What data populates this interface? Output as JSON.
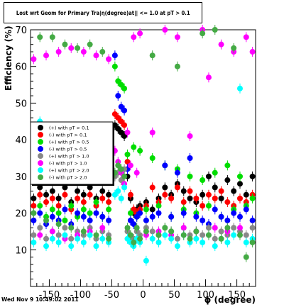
{
  "page": {
    "title": "Lost wrt Geom for Primary Tra|η(degree)at|| <= 1.0 at pT > 0.1",
    "datestamp": "Wed Nov  9 10:49:02 2011"
  },
  "chart_data": {
    "type": "scatter",
    "title": "Lost wrt Geom for Primary Tra|η(degree)at|| <= 1.0 at pT > 0.1",
    "xlabel": "ϕ (degree)",
    "ylabel": "Efficiency (%)",
    "xlim": [
      -180,
      180
    ],
    "ylim": [
      0,
      70
    ],
    "xticks": [
      -150,
      -100,
      -50,
      0,
      50,
      100,
      150
    ],
    "yticks": [
      10,
      20,
      30,
      40,
      50,
      60,
      70
    ],
    "grid": false,
    "legend_position": "center-left",
    "series": [
      {
        "name": "(+) with pT > 0.1",
        "color": "#000000",
        "x": [
          -175,
          -165,
          -155,
          -145,
          -135,
          -125,
          -115,
          -105,
          -95,
          -85,
          -75,
          -65,
          -55,
          -45,
          -40,
          -35,
          -30,
          -25,
          -20,
          -15,
          -10,
          -5,
          5,
          15,
          25,
          35,
          45,
          55,
          65,
          75,
          85,
          95,
          105,
          115,
          125,
          135,
          145,
          155,
          165,
          175
        ],
        "y": [
          24,
          27,
          25,
          26,
          24,
          27,
          23,
          26,
          25,
          27,
          24,
          26,
          25,
          44,
          43,
          42,
          41,
          30,
          24,
          20,
          21,
          22,
          23,
          21,
          24,
          27,
          25,
          28,
          26,
          24,
          23,
          25,
          30,
          27,
          24,
          29,
          26,
          28,
          25,
          30
        ]
      },
      {
        "name": "(-) with pT > 0.1",
        "color": "#ff0000",
        "x": [
          -175,
          -165,
          -155,
          -145,
          -135,
          -125,
          -115,
          -105,
          -95,
          -85,
          -75,
          -65,
          -55,
          -45,
          -40,
          -35,
          -30,
          -25,
          -20,
          -15,
          -10,
          -5,
          5,
          15,
          25,
          35,
          45,
          55,
          65,
          75,
          85,
          95,
          105,
          115,
          125,
          135,
          145,
          155,
          165,
          175
        ],
        "y": [
          22,
          25,
          23,
          24,
          22,
          25,
          21,
          24,
          23,
          25,
          22,
          24,
          23,
          47,
          46,
          45,
          44,
          34,
          25,
          21,
          20,
          21,
          22,
          27,
          23,
          25,
          24,
          27,
          23,
          26,
          24,
          22,
          25,
          24,
          26,
          23,
          22,
          24,
          23,
          25
        ]
      },
      {
        "name": "(+) with pT > 0.5",
        "color": "#00dd00",
        "x": [
          -175,
          -165,
          -155,
          -145,
          -135,
          -125,
          -115,
          -105,
          -95,
          -85,
          -75,
          -65,
          -55,
          -45,
          -40,
          -35,
          -30,
          -25,
          -20,
          -15,
          -10,
          -5,
          5,
          15,
          25,
          35,
          45,
          55,
          65,
          75,
          85,
          95,
          105,
          115,
          125,
          135,
          145,
          155,
          165,
          175
        ],
        "y": [
          20,
          22,
          19,
          21,
          20,
          18,
          22,
          19,
          21,
          20,
          23,
          19,
          21,
          60,
          56,
          55,
          54,
          36,
          20,
          38,
          19,
          37,
          21,
          35,
          22,
          33,
          19,
          32,
          21,
          30,
          20,
          29,
          22,
          31,
          19,
          33,
          21,
          30,
          22,
          24
        ]
      },
      {
        "name": "(-) with pT > 0.5",
        "color": "#0000ff",
        "x": [
          -175,
          -165,
          -155,
          -145,
          -135,
          -125,
          -115,
          -105,
          -95,
          -85,
          -75,
          -65,
          -55,
          -45,
          -40,
          -35,
          -30,
          -25,
          -20,
          -15,
          -10,
          -5,
          5,
          15,
          25,
          35,
          45,
          55,
          65,
          75,
          85,
          95,
          105,
          115,
          125,
          135,
          145,
          155,
          165,
          175
        ],
        "y": [
          18,
          20,
          17,
          19,
          18,
          21,
          17,
          20,
          19,
          18,
          20,
          19,
          18,
          63,
          52,
          49,
          48,
          32,
          18,
          17,
          19,
          20,
          18,
          19,
          20,
          33,
          19,
          31,
          20,
          35,
          19,
          18,
          17,
          21,
          19,
          18,
          20,
          19,
          21,
          18
        ]
      },
      {
        "name": "(+) with pT > 1.0",
        "color": "#888888",
        "x": [
          -175,
          -165,
          -155,
          -145,
          -135,
          -125,
          -115,
          -105,
          -95,
          -85,
          -75,
          -65,
          -55,
          -45,
          -40,
          -35,
          -30,
          -25,
          -20,
          -15,
          -10,
          -5,
          5,
          15,
          25,
          35,
          45,
          55,
          65,
          75,
          85,
          95,
          105,
          115,
          125,
          135,
          145,
          155,
          165,
          175
        ],
        "y": [
          14,
          16,
          13,
          15,
          14,
          16,
          13,
          15,
          14,
          16,
          13,
          15,
          14,
          30,
          31,
          29,
          32,
          15,
          14,
          13,
          15,
          14,
          16,
          15,
          14,
          16,
          15,
          13,
          16,
          14,
          15,
          14,
          16,
          13,
          15,
          14,
          16,
          15,
          14,
          16
        ]
      },
      {
        "name": "(-) with pT > 1.0",
        "color": "#ff00ff",
        "x": [
          -175,
          -165,
          -155,
          -145,
          -135,
          -125,
          -115,
          -105,
          -95,
          -85,
          -75,
          -65,
          -55,
          -45,
          -40,
          -35,
          -30,
          -25,
          -20,
          -15,
          -10,
          -5,
          5,
          15,
          25,
          35,
          45,
          55,
          65,
          75,
          85,
          95,
          105,
          115,
          125,
          135,
          145,
          155,
          165,
          175
        ],
        "y": [
          62,
          14,
          63,
          15,
          64,
          13,
          65,
          14,
          64,
          15,
          63,
          16,
          62,
          37,
          34,
          31,
          28,
          42,
          33,
          68,
          31,
          69,
          14,
          42,
          15,
          70,
          14,
          68,
          16,
          41,
          15,
          70,
          57,
          16,
          66,
          15,
          64,
          16,
          68,
          64
        ]
      },
      {
        "name": "(+) with pT > 2.0",
        "color": "#00ffff",
        "x": [
          -175,
          -165,
          -155,
          -145,
          -135,
          -125,
          -115,
          -105,
          -95,
          -85,
          -75,
          -65,
          -55,
          -45,
          -40,
          -35,
          -30,
          -25,
          -20,
          -15,
          -10,
          -5,
          5,
          15,
          25,
          35,
          45,
          55,
          65,
          75,
          85,
          95,
          105,
          115,
          125,
          135,
          145,
          155,
          165,
          175
        ],
        "y": [
          12,
          45,
          11,
          13,
          12,
          14,
          11,
          13,
          12,
          14,
          11,
          13,
          12,
          25,
          26,
          24,
          27,
          13,
          12,
          11,
          13,
          12,
          7,
          13,
          12,
          14,
          13,
          11,
          14,
          12,
          13,
          12,
          14,
          11,
          13,
          12,
          14,
          54,
          12,
          13
        ]
      },
      {
        "name": "(-) with pT > 2.0",
        "color": "#44aa44",
        "x": [
          -175,
          -165,
          -155,
          -145,
          -135,
          -125,
          -115,
          -105,
          -95,
          -85,
          -75,
          -65,
          -55,
          -45,
          -40,
          -35,
          -30,
          -25,
          -20,
          -15,
          -10,
          -5,
          5,
          15,
          25,
          35,
          45,
          55,
          65,
          75,
          85,
          95,
          105,
          115,
          125,
          135,
          145,
          155,
          165,
          175
        ],
        "y": [
          20,
          68,
          18,
          68,
          17,
          66,
          16,
          65,
          15,
          66,
          14,
          64,
          13,
          31,
          33,
          32,
          30,
          16,
          14,
          12,
          16,
          13,
          15,
          63,
          14,
          16,
          15,
          60,
          14,
          13,
          15,
          69,
          14,
          70,
          13,
          16,
          65,
          14,
          8,
          12
        ]
      }
    ]
  }
}
